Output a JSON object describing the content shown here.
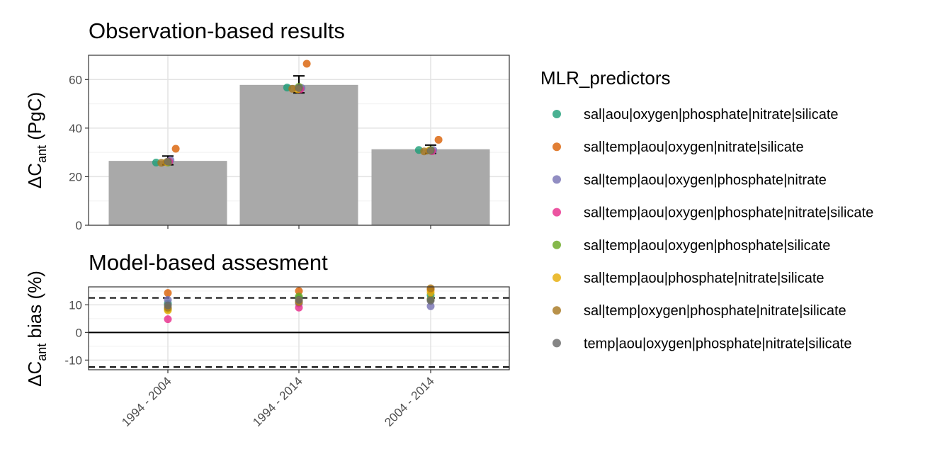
{
  "legend": {
    "title": "MLR_predictors",
    "items": [
      {
        "label": "sal|aou|oxygen|phosphate|nitrate|silicate",
        "color": "#1B9E77"
      },
      {
        "label": "sal|temp|aou|oxygen|nitrate|silicate",
        "color": "#D95F02"
      },
      {
        "label": "sal|temp|aou|oxygen|phosphate|nitrate",
        "color": "#7570B3"
      },
      {
        "label": "sal|temp|aou|oxygen|phosphate|nitrate|silicate",
        "color": "#E7298A"
      },
      {
        "label": "sal|temp|aou|oxygen|phosphate|silicate",
        "color": "#66A61E"
      },
      {
        "label": "sal|temp|aou|phosphate|nitrate|silicate",
        "color": "#E6AB02"
      },
      {
        "label": "sal|temp|oxygen|phosphate|nitrate|silicate",
        "color": "#A6761D"
      },
      {
        "label": "temp|aou|oxygen|phosphate|nitrate|silicate",
        "color": "#666666"
      }
    ]
  },
  "chart_data": [
    {
      "type": "bar",
      "title": "Observation-based results",
      "ylabel": "ΔC",
      "ylabel_sub": "ant",
      "ylabel_suffix": " (PgC)",
      "categories": [
        "1994 - 2004",
        "1994 - 2014",
        "2004 - 2014"
      ],
      "values": [
        26.5,
        57.8,
        31.3
      ],
      "error_bars": [
        [
          24.9,
          28.5
        ],
        [
          54.5,
          61.5
        ],
        [
          29.6,
          33.0
        ]
      ],
      "ylim": [
        0,
        70
      ],
      "yticks": [
        0,
        20,
        40,
        60
      ],
      "bar_color": "#A9A9A9",
      "grid": true,
      "points": [
        [
          25.8,
          31.5,
          26.8,
          26.2,
          25.8,
          26.0,
          25.7,
          26.2
        ],
        [
          56.7,
          66.5,
          56.5,
          56.0,
          57.0,
          56.0,
          56.2,
          56.5
        ],
        [
          31.0,
          35.2,
          31.0,
          30.5,
          31.0,
          30.8,
          30.4,
          30.7
        ]
      ]
    },
    {
      "type": "scatter",
      "title": "Model-based assesment",
      "ylabel": "ΔC",
      "ylabel_sub": "ant",
      "ylabel_suffix": " bias (%)",
      "categories": [
        "1994 - 2004",
        "1994 - 2014",
        "2004 - 2014"
      ],
      "ylim": [
        -13.5,
        16.5
      ],
      "yticks": [
        -10,
        0,
        10
      ],
      "hlines": {
        "solid": 0,
        "dashed": [
          12.5,
          -12.5
        ]
      },
      "grid": true,
      "points": [
        [
          10.5,
          14.3,
          11.8,
          4.8,
          8.5,
          8.0,
          9.0,
          9.8
        ],
        [
          12.5,
          15.0,
          10.5,
          9.0,
          13.0,
          11.5,
          11.0,
          11.8
        ],
        [
          13.5,
          15.5,
          9.5,
          12.0,
          12.0,
          14.5,
          16.0,
          11.5
        ]
      ]
    }
  ]
}
